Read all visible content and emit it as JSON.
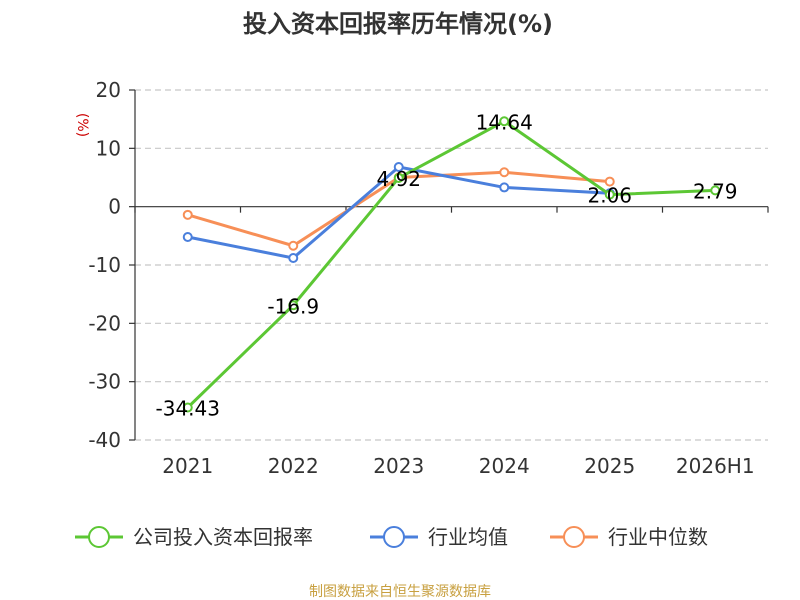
{
  "chart_data": {
    "type": "line",
    "title": "投入资本回报率历年情况(%)",
    "ylabel": "(%)",
    "ylim": [
      -40,
      20
    ],
    "yticks": [
      20,
      10,
      0,
      -10,
      -20,
      -30,
      -40
    ],
    "categories": [
      "2021",
      "2022",
      "2023",
      "2024",
      "2025",
      "2026H1"
    ],
    "grid": true,
    "legend_position": "bottom",
    "series": [
      {
        "name": "公司投入资本回报率",
        "color": "#5cc734",
        "values": [
          -34.43,
          -16.9,
          4.92,
          14.64,
          2.06,
          2.79
        ],
        "labels": [
          "-34.43",
          "-16.9",
          "4.92",
          "14.64",
          "2.06",
          "2.79"
        ]
      },
      {
        "name": "行业均值",
        "color": "#4a7fdc",
        "values": [
          -5.2,
          -8.8,
          6.8,
          3.3,
          2.3,
          null
        ]
      },
      {
        "name": "行业中位数",
        "color": "#f78f57",
        "values": [
          -1.4,
          -6.7,
          5.0,
          5.9,
          4.3,
          null
        ]
      }
    ]
  },
  "source": "制图数据来自恒生聚源数据库"
}
